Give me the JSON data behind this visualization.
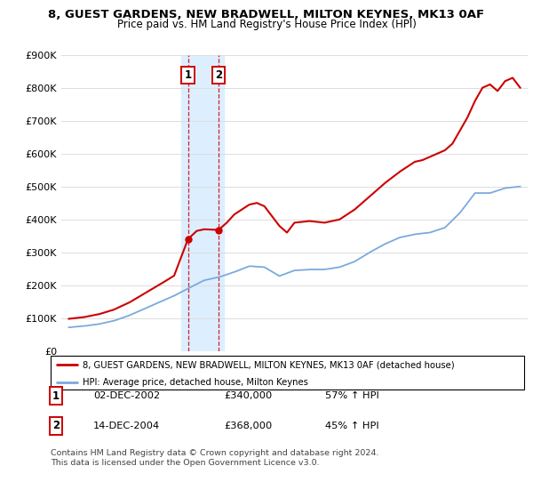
{
  "title": "8, GUEST GARDENS, NEW BRADWELL, MILTON KEYNES, MK13 0AF",
  "subtitle": "Price paid vs. HM Land Registry's House Price Index (HPI)",
  "legend_line1": "8, GUEST GARDENS, NEW BRADWELL, MILTON KEYNES, MK13 0AF (detached house)",
  "legend_line2": "HPI: Average price, detached house, Milton Keynes",
  "sale1_date": "02-DEC-2002",
  "sale1_price": 340000,
  "sale1_pct": "57% ↑ HPI",
  "sale1_year": 2002.92,
  "sale2_date": "14-DEC-2004",
  "sale2_price": 368000,
  "sale2_pct": "45% ↑ HPI",
  "sale2_year": 2004.95,
  "red_color": "#cc0000",
  "blue_color": "#7aaadd",
  "shade_color": "#ddeeff",
  "footnote": "Contains HM Land Registry data © Crown copyright and database right 2024.\nThis data is licensed under the Open Government Licence v3.0.",
  "ylim_max": 900000,
  "xlim_start": 1995,
  "xlim_end": 2025.5,
  "hpi_keypoints": [
    [
      1995.0,
      72000
    ],
    [
      1996.0,
      76000
    ],
    [
      1997.0,
      82000
    ],
    [
      1998.0,
      92000
    ],
    [
      1999.0,
      108000
    ],
    [
      2000.0,
      128000
    ],
    [
      2001.0,
      148000
    ],
    [
      2002.0,
      168000
    ],
    [
      2003.0,
      192000
    ],
    [
      2004.0,
      215000
    ],
    [
      2005.0,
      225000
    ],
    [
      2006.0,
      240000
    ],
    [
      2007.0,
      258000
    ],
    [
      2008.0,
      255000
    ],
    [
      2009.0,
      228000
    ],
    [
      2010.0,
      245000
    ],
    [
      2011.0,
      248000
    ],
    [
      2012.0,
      248000
    ],
    [
      2013.0,
      255000
    ],
    [
      2014.0,
      272000
    ],
    [
      2015.0,
      300000
    ],
    [
      2016.0,
      325000
    ],
    [
      2017.0,
      345000
    ],
    [
      2018.0,
      355000
    ],
    [
      2019.0,
      360000
    ],
    [
      2020.0,
      375000
    ],
    [
      2021.0,
      420000
    ],
    [
      2022.0,
      480000
    ],
    [
      2023.0,
      480000
    ],
    [
      2024.0,
      495000
    ],
    [
      2025.0,
      500000
    ]
  ],
  "red_keypoints": [
    [
      1995.0,
      98000
    ],
    [
      1996.0,
      103000
    ],
    [
      1997.0,
      112000
    ],
    [
      1998.0,
      126000
    ],
    [
      1999.0,
      147000
    ],
    [
      2000.0,
      174000
    ],
    [
      2001.0,
      201000
    ],
    [
      2002.0,
      229000
    ],
    [
      2002.92,
      340000
    ],
    [
      2003.5,
      365000
    ],
    [
      2004.0,
      370000
    ],
    [
      2004.95,
      368000
    ],
    [
      2005.5,
      390000
    ],
    [
      2006.0,
      415000
    ],
    [
      2007.0,
      445000
    ],
    [
      2007.5,
      450000
    ],
    [
      2008.0,
      440000
    ],
    [
      2009.0,
      380000
    ],
    [
      2009.5,
      360000
    ],
    [
      2010.0,
      390000
    ],
    [
      2011.0,
      395000
    ],
    [
      2012.0,
      390000
    ],
    [
      2013.0,
      400000
    ],
    [
      2014.0,
      430000
    ],
    [
      2015.0,
      470000
    ],
    [
      2016.0,
      510000
    ],
    [
      2017.0,
      545000
    ],
    [
      2017.5,
      560000
    ],
    [
      2018.0,
      575000
    ],
    [
      2018.5,
      580000
    ],
    [
      2019.0,
      590000
    ],
    [
      2019.5,
      600000
    ],
    [
      2020.0,
      610000
    ],
    [
      2020.5,
      630000
    ],
    [
      2021.0,
      670000
    ],
    [
      2021.5,
      710000
    ],
    [
      2022.0,
      760000
    ],
    [
      2022.5,
      800000
    ],
    [
      2023.0,
      810000
    ],
    [
      2023.5,
      790000
    ],
    [
      2024.0,
      820000
    ],
    [
      2024.5,
      830000
    ],
    [
      2025.0,
      800000
    ]
  ]
}
